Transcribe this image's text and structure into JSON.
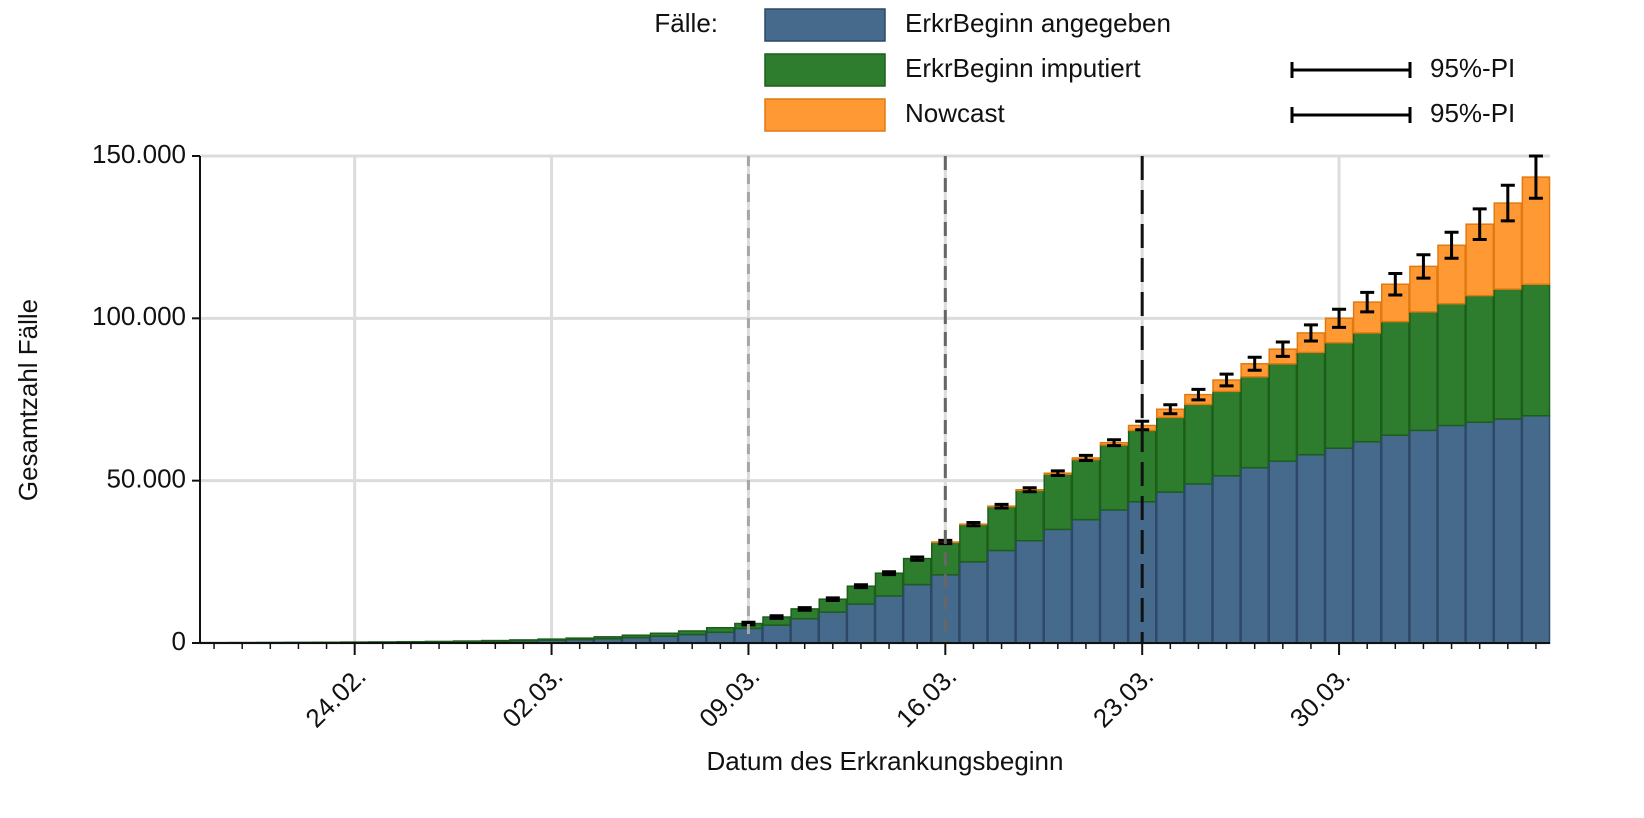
{
  "chart_data": {
    "type": "stacked-bar",
    "legend_title": "Fälle:",
    "x_label": "Datum des Erkrankungsbeginn",
    "y_label": "Gesamtzahl Fälle",
    "categories": [
      null,
      null,
      null,
      null,
      null,
      "24.02.",
      null,
      null,
      null,
      null,
      null,
      null,
      "02.03.",
      null,
      null,
      null,
      null,
      null,
      null,
      "09.03.",
      null,
      null,
      null,
      null,
      null,
      null,
      "16.03.",
      null,
      null,
      null,
      null,
      null,
      null,
      "23.03.",
      null,
      null,
      null,
      null,
      null,
      null,
      "30.03.",
      null,
      null,
      null,
      null,
      null,
      null,
      null
    ],
    "series": [
      {
        "name": "ErkrBeginn angegeben",
        "color": "#456a8c",
        "stroke": "#2c4866",
        "values": [
          70,
          85,
          105,
          125,
          155,
          195,
          230,
          280,
          335,
          420,
          525,
          665,
          840,
          1050,
          1330,
          1680,
          2100,
          2600,
          3300,
          4500,
          5500,
          7500,
          9500,
          12000,
          14500,
          18000,
          21000,
          25000,
          28500,
          31500,
          35000,
          38000,
          41000,
          43500,
          46500,
          49000,
          51500,
          54000,
          56000,
          58000,
          60000,
          62000,
          64000,
          65500,
          67000,
          68000,
          69000,
          70000
        ]
      },
      {
        "name": "ErkrBeginn imputiert",
        "color": "#2e7d2e",
        "stroke": "#1b5e1b",
        "pi_label": "95%-PI",
        "values": [
          30,
          35,
          45,
          55,
          65,
          85,
          100,
          120,
          145,
          180,
          225,
          285,
          360,
          450,
          570,
          720,
          900,
          1100,
          1400,
          1500,
          2500,
          3000,
          4000,
          5500,
          7000,
          8000,
          10000,
          11500,
          13500,
          15500,
          17000,
          18500,
          20000,
          22000,
          23000,
          24500,
          26000,
          28000,
          30000,
          31500,
          32500,
          33500,
          35000,
          36500,
          37500,
          39000,
          40000,
          40500
        ]
      },
      {
        "name": "Nowcast",
        "color": "#ff9933",
        "stroke": "#e07a10",
        "pi_label": "95%-PI",
        "values": [
          0,
          0,
          0,
          0,
          0,
          0,
          0,
          0,
          0,
          0,
          0,
          0,
          0,
          0,
          0,
          0,
          0,
          0,
          0,
          0,
          0,
          0,
          0,
          0,
          0,
          0,
          100,
          100,
          150,
          200,
          300,
          500,
          700,
          1500,
          2500,
          3000,
          3500,
          4000,
          4500,
          6000,
          7500,
          9500,
          11500,
          14000,
          18000,
          22000,
          26500,
          33000
        ],
        "errors": [
          null,
          null,
          null,
          null,
          null,
          null,
          null,
          null,
          null,
          null,
          null,
          null,
          null,
          null,
          null,
          null,
          null,
          null,
          null,
          400,
          400,
          400,
          400,
          450,
          450,
          500,
          500,
          500,
          550,
          600,
          700,
          800,
          900,
          1300,
          1400,
          1600,
          1800,
          2000,
          2200,
          2500,
          2800,
          3000,
          3300,
          3600,
          4000,
          4700,
          5500,
          6500
        ]
      }
    ],
    "ylim": [
      0,
      150000
    ],
    "yticks": [
      0,
      {
        "value": 50000,
        "label": "50.000"
      },
      {
        "value": 100000,
        "label": "100.000"
      },
      {
        "value": 150000,
        "label": "150.000"
      }
    ],
    "grid": true,
    "vlines": [
      {
        "at": "09.03.",
        "color": "#a6a6a6"
      },
      {
        "at": "16.03.",
        "color": "#666666"
      },
      {
        "at": "23.03.",
        "color": "#111111"
      }
    ]
  }
}
